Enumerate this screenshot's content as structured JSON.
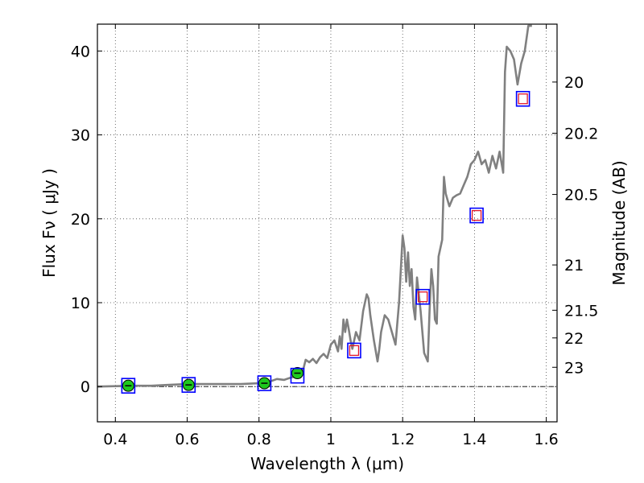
{
  "chart_data": {
    "type": "line",
    "xlabel": "Wavelength  λ (μm)",
    "ylabel": "Flux  Fν  ( μJy )",
    "y2label": "Magnitude (AB)",
    "xlim": [
      0.35,
      1.63
    ],
    "ylim": [
      -4.2,
      43.2
    ],
    "grid": true,
    "xticks": [
      {
        "v": 0.4,
        "label": "0.4"
      },
      {
        "v": 0.6,
        "label": "0.6"
      },
      {
        "v": 0.8,
        "label": "0.8"
      },
      {
        "v": 1.0,
        "label": "1"
      },
      {
        "v": 1.2,
        "label": "1.2"
      },
      {
        "v": 1.4,
        "label": "1.4"
      },
      {
        "v": 1.6,
        "label": "1.6"
      }
    ],
    "yticks": [
      {
        "v": 0,
        "label": "0"
      },
      {
        "v": 10,
        "label": "10"
      },
      {
        "v": 20,
        "label": "20"
      },
      {
        "v": 30,
        "label": "30"
      },
      {
        "v": 40,
        "label": "40"
      }
    ],
    "y2ticks": [
      {
        "flux": 36.3,
        "label": "20"
      },
      {
        "flux": 30.2,
        "label": "20.2"
      },
      {
        "flux": 22.9,
        "label": "20.5"
      },
      {
        "flux": 14.5,
        "label": "21"
      },
      {
        "flux": 9.1,
        "label": "21.5"
      },
      {
        "flux": 5.8,
        "label": "22"
      },
      {
        "flux": 2.3,
        "label": "23"
      }
    ],
    "colors": {
      "model": "#808080",
      "observed_marker": "#1ec81e",
      "observed_box": "#0000ff",
      "model_box": "#e0142a",
      "zero_line": "#000000"
    },
    "series": [
      {
        "kind": "line",
        "x": [
          0.35,
          0.4,
          0.45,
          0.5,
          0.55,
          0.6,
          0.65,
          0.7,
          0.75,
          0.8,
          0.83,
          0.85,
          0.87,
          0.89,
          0.9,
          0.92,
          0.93,
          0.94,
          0.95,
          0.96,
          0.97,
          0.98,
          0.99,
          1.0,
          1.01,
          1.02,
          1.025,
          1.03,
          1.035,
          1.04,
          1.045,
          1.05,
          1.055,
          1.06,
          1.07,
          1.08,
          1.09,
          1.1,
          1.105,
          1.11,
          1.12,
          1.13,
          1.135,
          1.14,
          1.15,
          1.16,
          1.17,
          1.18,
          1.19,
          1.2,
          1.205,
          1.21,
          1.215,
          1.22,
          1.225,
          1.23,
          1.235,
          1.24,
          1.25,
          1.26,
          1.27,
          1.275,
          1.28,
          1.285,
          1.29,
          1.295,
          1.3,
          1.31,
          1.315,
          1.32,
          1.33,
          1.34,
          1.35,
          1.36,
          1.37,
          1.38,
          1.39,
          1.4,
          1.41,
          1.42,
          1.43,
          1.44,
          1.45,
          1.46,
          1.47,
          1.48,
          1.485,
          1.49,
          1.5,
          1.51,
          1.515,
          1.52,
          1.53,
          1.54,
          1.55,
          1.56
        ],
        "y": [
          0.0,
          0.05,
          0.1,
          0.1,
          0.2,
          0.3,
          0.3,
          0.3,
          0.3,
          0.4,
          0.6,
          0.9,
          0.8,
          1.1,
          1.2,
          1.5,
          3.2,
          2.9,
          3.3,
          2.8,
          3.5,
          3.9,
          3.4,
          5.0,
          5.5,
          4.2,
          6.0,
          4.5,
          8.0,
          6.5,
          8.0,
          6.8,
          5.5,
          4.5,
          6.5,
          5.5,
          9.0,
          11.0,
          10.5,
          8.5,
          5.5,
          3.0,
          4.5,
          6.5,
          8.5,
          8.0,
          6.5,
          5.0,
          10.0,
          18.0,
          16.5,
          12.5,
          16.0,
          12.0,
          14.0,
          9.5,
          8.0,
          13.0,
          9.0,
          4.0,
          3.0,
          9.0,
          14.0,
          12.0,
          8.0,
          7.5,
          15.5,
          17.5,
          25.0,
          23.0,
          21.5,
          22.5,
          22.8,
          23.0,
          24.0,
          25.0,
          26.5,
          27.0,
          28.0,
          26.5,
          27.0,
          25.5,
          27.5,
          26.0,
          28.0,
          25.5,
          37.5,
          40.5,
          40.0,
          39.0,
          37.5,
          36.0,
          38.5,
          40.0,
          43.0,
          43.0
        ]
      },
      {
        "kind": "observed_points",
        "x": [
          0.436,
          0.604,
          0.815,
          0.907
        ],
        "y": [
          0.1,
          0.2,
          0.4,
          1.6
        ]
      },
      {
        "kind": "blue_squares",
        "x": [
          0.436,
          0.604,
          0.815,
          0.907,
          1.065,
          1.256,
          1.406,
          1.535
        ],
        "y": [
          0.1,
          0.2,
          0.4,
          1.3,
          4.3,
          10.7,
          20.4,
          34.3
        ]
      },
      {
        "kind": "red_squares",
        "x": [
          1.065,
          1.256,
          1.406,
          1.535
        ],
        "y": [
          4.3,
          10.7,
          20.4,
          34.3
        ]
      }
    ]
  }
}
